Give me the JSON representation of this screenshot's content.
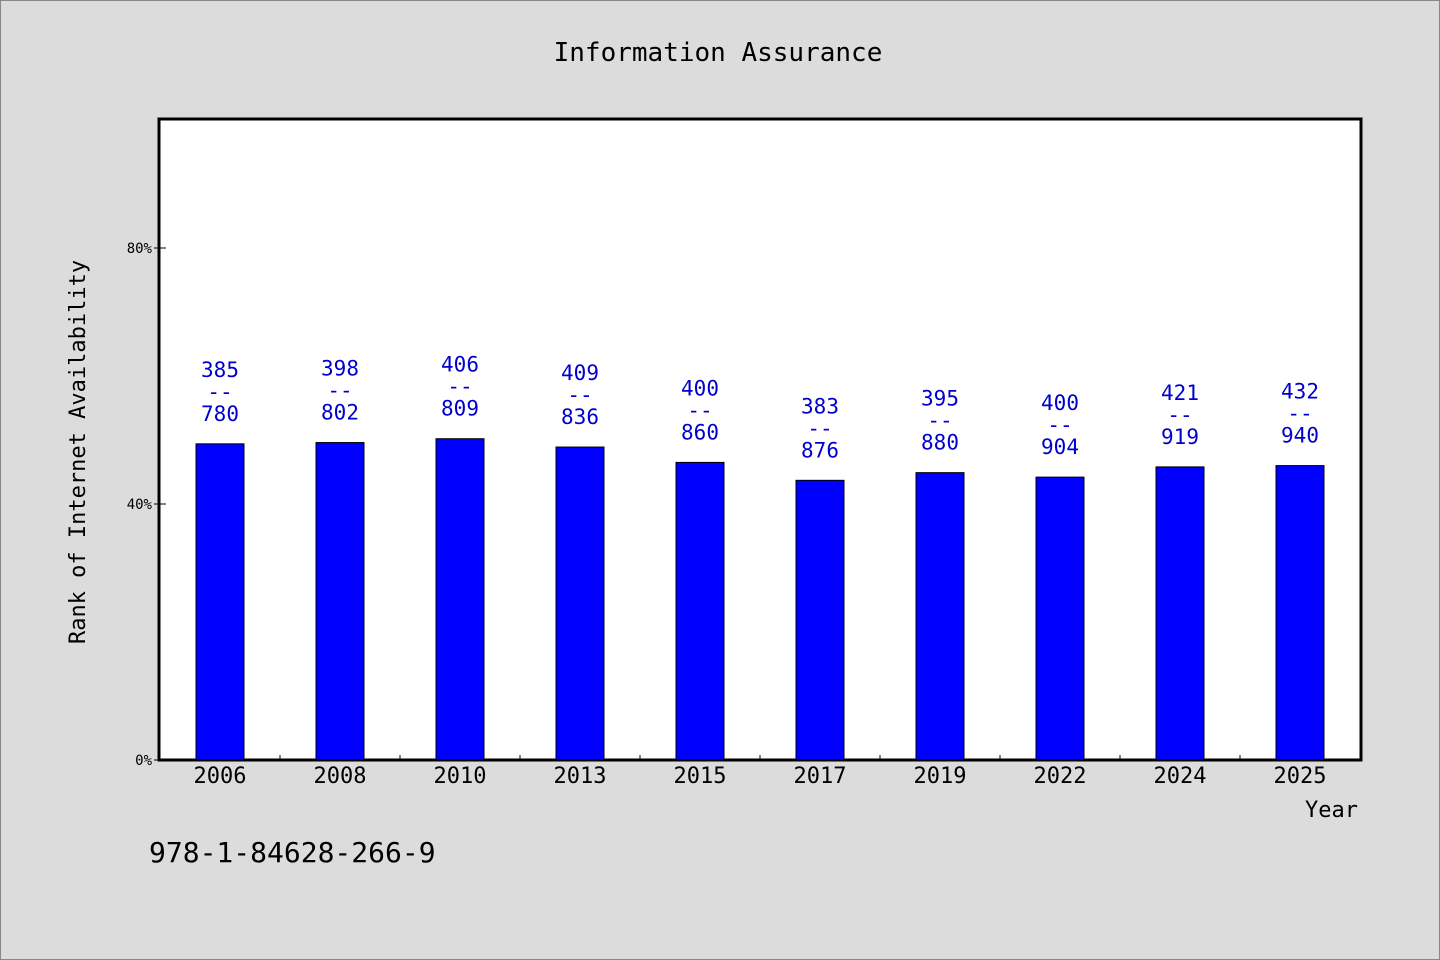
{
  "chart_data": {
    "type": "bar",
    "title": "Information Assurance",
    "xlabel": "Year",
    "ylabel": "Rank of Internet Availability",
    "categories": [
      "2006",
      "2008",
      "2010",
      "2013",
      "2015",
      "2017",
      "2019",
      "2022",
      "2024",
      "2025"
    ],
    "values": [
      49.4,
      49.6,
      50.2,
      48.9,
      46.5,
      43.7,
      44.9,
      44.2,
      45.8,
      46.0
    ],
    "value_unit": "%",
    "label_top": [
      "385",
      "398",
      "406",
      "409",
      "400",
      "383",
      "395",
      "400",
      "421",
      "432"
    ],
    "label_bottom": [
      "780",
      "802",
      "809",
      "836",
      "860",
      "876",
      "880",
      "904",
      "919",
      "940"
    ],
    "label_separator": "--",
    "ylim": [
      0,
      100
    ],
    "yticks": [
      0,
      40,
      80
    ],
    "ytick_labels": [
      "0%",
      "40%",
      "80%"
    ],
    "grid": false,
    "bar_color": "#0000ff",
    "label_color": "#0000cc",
    "footnote": "978-1-84628-266-9"
  }
}
